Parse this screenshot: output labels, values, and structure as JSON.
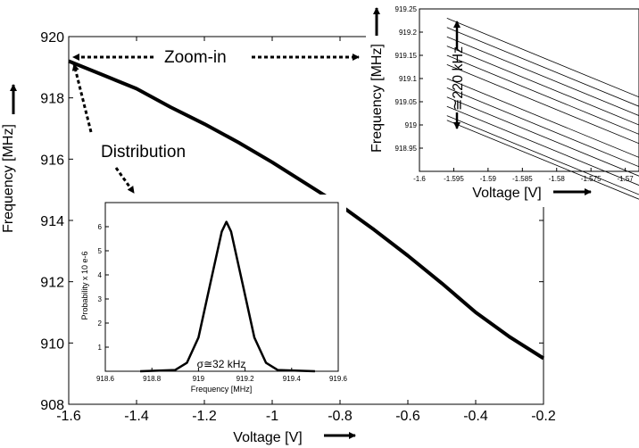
{
  "chart_data": [
    {
      "type": "line",
      "title": "",
      "xlabel": "Voltage [V]",
      "ylabel": "Frequency [MHz]",
      "xlim": [
        -1.6,
        -0.2
      ],
      "ylim": [
        908,
        920
      ],
      "xticks": [
        -1.6,
        -1.4,
        -1.2,
        -1,
        -0.8,
        -0.6,
        -0.4,
        -0.2
      ],
      "xtick_labels": [
        "-1.6",
        "-1.4",
        "-1.2",
        "-1",
        "-0.8",
        "-0.6",
        "-0.4",
        "-0.2"
      ],
      "yticks": [
        908,
        910,
        912,
        914,
        916,
        918,
        920
      ],
      "ytick_labels": [
        "908",
        "910",
        "912",
        "914",
        "916",
        "918",
        "920"
      ],
      "grid": false,
      "series": [
        {
          "x": [
            -1.6,
            -1.5,
            -1.4,
            -1.3,
            -1.2,
            -1.1,
            -1.0,
            -0.9,
            -0.8,
            -0.7,
            -0.6,
            -0.5,
            -0.4,
            -0.3,
            -0.2
          ],
          "y": [
            919.2,
            918.75,
            918.3,
            917.7,
            917.15,
            916.55,
            915.9,
            915.2,
            914.5,
            913.7,
            912.85,
            911.95,
            911.0,
            910.2,
            909.5
          ]
        }
      ],
      "annotations": [
        "Zoom-in",
        "Distribution"
      ]
    },
    {
      "type": "line",
      "title": "",
      "xlabel": "Voltage [V]",
      "ylabel": "Frequency [MHz]",
      "xlim": [
        -1.6,
        -1.568
      ],
      "ylim": [
        918.9,
        919.25
      ],
      "xtick_labels": [
        "-1.6",
        "-1.595",
        "-1.59",
        "-1.585",
        "-1.58",
        "-1.575",
        "-1.57"
      ],
      "ytick_labels": [
        "918.95",
        "919",
        "919.05",
        "919.1",
        "919.15",
        "919.2",
        "919.25"
      ],
      "grid": false,
      "series": [
        {
          "x": [
            -1.596,
            -1.568
          ],
          "y": [
            919.23,
            919.06
          ]
        },
        {
          "x": [
            -1.596,
            -1.568
          ],
          "y": [
            919.21,
            919.04
          ]
        },
        {
          "x": [
            -1.596,
            -1.568
          ],
          "y": [
            919.19,
            919.02
          ]
        },
        {
          "x": [
            -1.596,
            -1.568
          ],
          "y": [
            919.17,
            919.0
          ]
        },
        {
          "x": [
            -1.596,
            -1.568
          ],
          "y": [
            919.15,
            918.98
          ]
        },
        {
          "x": [
            -1.596,
            -1.568
          ],
          "y": [
            919.13,
            918.96
          ]
        },
        {
          "x": [
            -1.596,
            -1.568
          ],
          "y": [
            919.1,
            918.93
          ]
        },
        {
          "x": [
            -1.596,
            -1.568
          ],
          "y": [
            919.08,
            918.91
          ]
        },
        {
          "x": [
            -1.596,
            -1.568
          ],
          "y": [
            919.06,
            918.89
          ]
        },
        {
          "x": [
            -1.596,
            -1.568
          ],
          "y": [
            919.04,
            918.87
          ]
        },
        {
          "x": [
            -1.596,
            -1.568
          ],
          "y": [
            919.02,
            918.85
          ]
        },
        {
          "x": [
            -1.596,
            -1.568
          ],
          "y": [
            919.01,
            918.84
          ]
        }
      ],
      "annotations": [
        "≅220 kHz"
      ]
    },
    {
      "type": "line",
      "title": "",
      "xlabel": "Frequency [MHz]",
      "ylabel": "Probability x 10 e-6",
      "xlim": [
        918.6,
        919.6
      ],
      "ylim": [
        0,
        7
      ],
      "xticks": [
        918.6,
        918.8,
        919,
        919.2,
        919.4,
        919.6
      ],
      "xtick_labels": [
        "918.6",
        "918.8",
        "919",
        "919.2",
        "919.4",
        "919.6"
      ],
      "yticks": [
        1,
        2,
        3,
        4,
        5,
        6
      ],
      "ytick_labels": [
        "1",
        "2",
        "3",
        "4",
        "5",
        "6"
      ],
      "grid": false,
      "series": [
        {
          "x": [
            918.75,
            918.9,
            918.95,
            919.0,
            919.05,
            919.1,
            919.12,
            919.14,
            919.19,
            919.24,
            919.29,
            919.34,
            919.5
          ],
          "y": [
            0,
            0.05,
            0.35,
            1.4,
            3.6,
            5.8,
            6.2,
            5.8,
            3.6,
            1.4,
            0.35,
            0.05,
            0
          ]
        }
      ],
      "annotations": [
        "σ≅32 kHz"
      ]
    }
  ]
}
